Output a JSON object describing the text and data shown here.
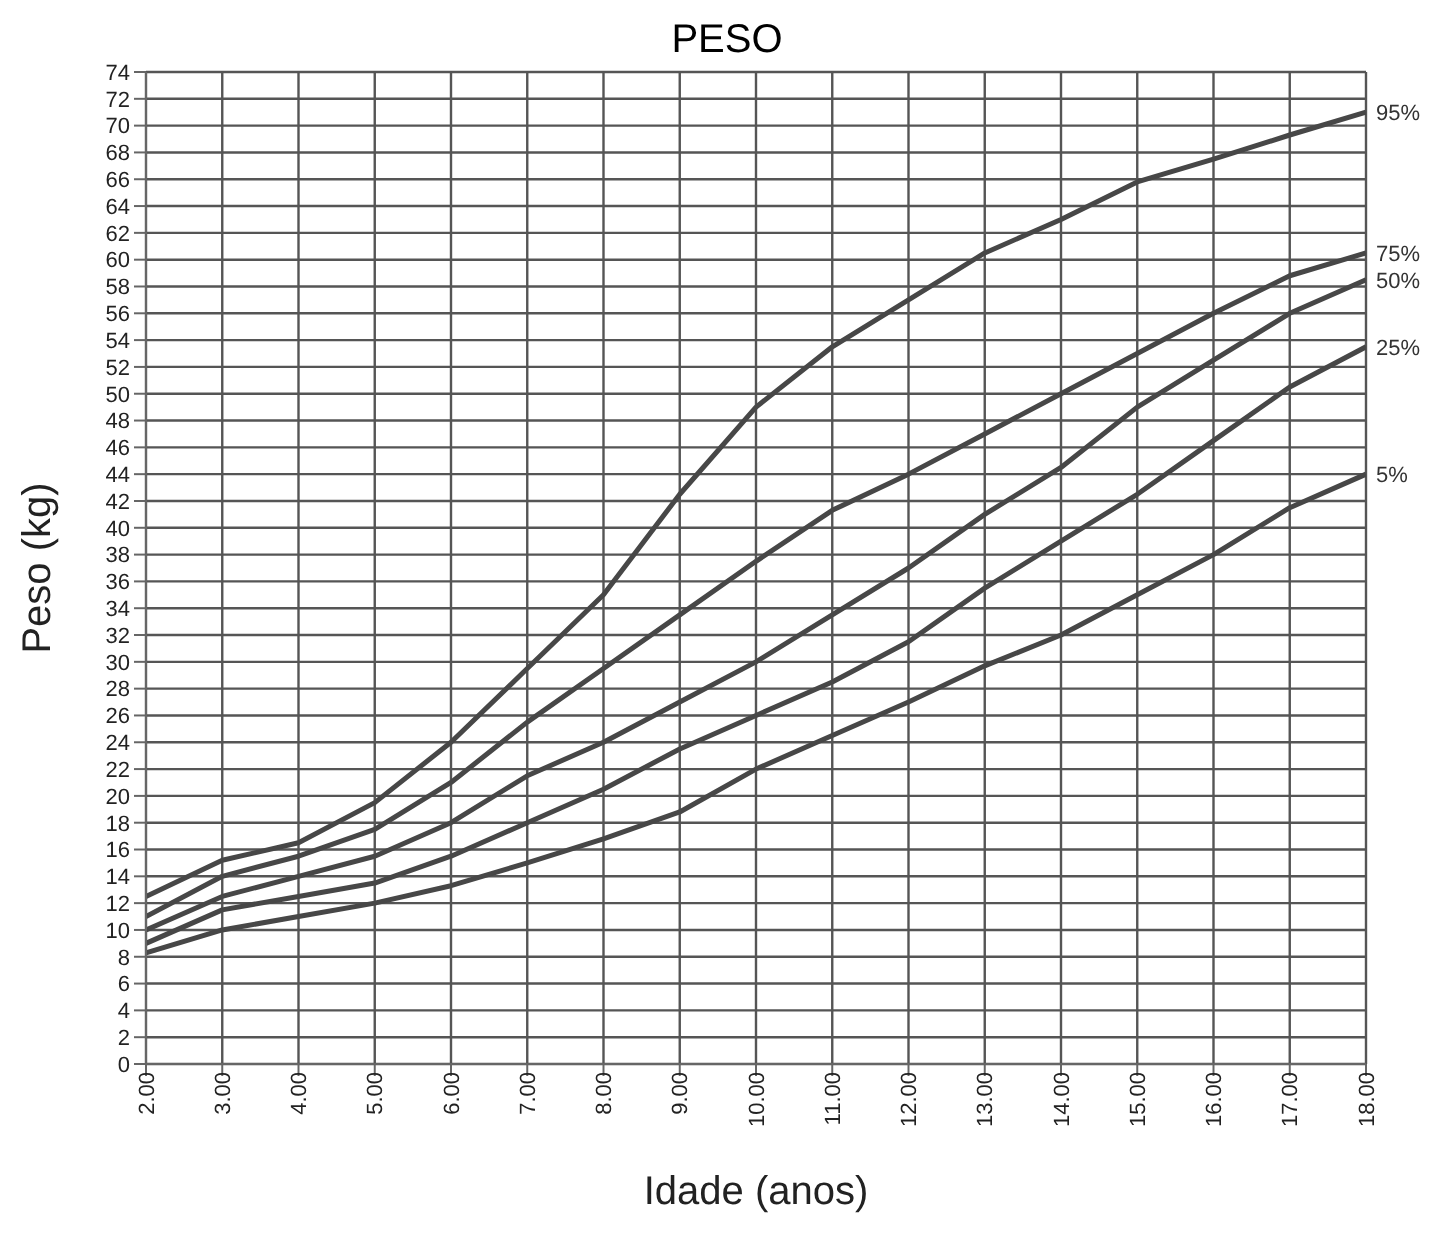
{
  "chart_data": {
    "type": "line",
    "title": "PESO",
    "xlabel": "Idade (anos)",
    "ylabel": "Peso (kg)",
    "x": [
      2,
      3,
      4,
      5,
      6,
      7,
      8,
      9,
      10,
      11,
      12,
      13,
      14,
      15,
      16,
      17,
      18
    ],
    "series": [
      {
        "name": "95%",
        "color": "#474747",
        "values": [
          12.5,
          15.2,
          16.5,
          19.5,
          24,
          29.5,
          35,
          42.5,
          49,
          53.5,
          57,
          60.5,
          63,
          65.8,
          67.5,
          69.3,
          71
        ]
      },
      {
        "name": "75%",
        "color": "#474747",
        "values": [
          11,
          14,
          15.5,
          17.5,
          21,
          25.5,
          29.5,
          33.5,
          37.5,
          41.3,
          44,
          47,
          50,
          53,
          56,
          58.8,
          60.5
        ]
      },
      {
        "name": "50%",
        "color": "#474747",
        "values": [
          10,
          12.5,
          14,
          15.5,
          18,
          21.5,
          24,
          27,
          30,
          33.5,
          37,
          41,
          44.5,
          49,
          52.5,
          56,
          58.5
        ]
      },
      {
        "name": "25%",
        "color": "#474747",
        "values": [
          9,
          11.5,
          12.5,
          13.5,
          15.5,
          18,
          20.5,
          23.5,
          26,
          28.5,
          31.5,
          35.5,
          39,
          42.5,
          46.5,
          50.5,
          53.5
        ]
      },
      {
        "name": "5%",
        "color": "#474747",
        "values": [
          8.3,
          10,
          11,
          12,
          13.3,
          15,
          16.8,
          18.8,
          22,
          24.5,
          27,
          29.7,
          32,
          35,
          38,
          41.5,
          44
        ]
      }
    ],
    "xlim": [
      2,
      18
    ],
    "xticks": [
      {
        "value": 2,
        "label": "2.00"
      },
      {
        "value": 3,
        "label": "3.00"
      },
      {
        "value": 4,
        "label": "4.00"
      },
      {
        "value": 5,
        "label": "5.00"
      },
      {
        "value": 6,
        "label": "6.00"
      },
      {
        "value": 7,
        "label": "7.00"
      },
      {
        "value": 8,
        "label": "8.00"
      },
      {
        "value": 9,
        "label": "9.00"
      },
      {
        "value": 10,
        "label": "10.00"
      },
      {
        "value": 11,
        "label": "11.00"
      },
      {
        "value": 12,
        "label": "12.00"
      },
      {
        "value": 13,
        "label": "13.00"
      },
      {
        "value": 14,
        "label": "14.00"
      },
      {
        "value": 15,
        "label": "15.00"
      },
      {
        "value": 16,
        "label": "16.00"
      },
      {
        "value": 17,
        "label": "17.00"
      },
      {
        "value": 18,
        "label": "18.00"
      }
    ],
    "ylim": [
      0,
      74
    ],
    "yticks": [
      0,
      2,
      4,
      6,
      8,
      10,
      12,
      14,
      16,
      18,
      20,
      22,
      24,
      26,
      28,
      30,
      32,
      34,
      36,
      38,
      40,
      42,
      44,
      46,
      48,
      50,
      52,
      54,
      56,
      58,
      60,
      62,
      64,
      66,
      68,
      70,
      72,
      74
    ],
    "grid": true,
    "marker": "none",
    "line_style": "solid"
  }
}
